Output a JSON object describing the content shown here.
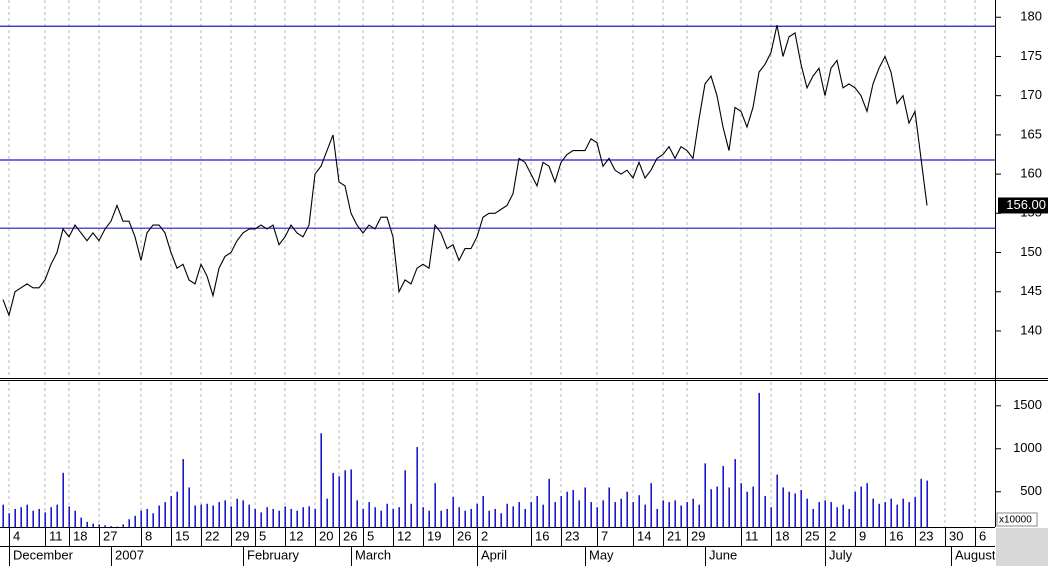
{
  "chart_data": {
    "type": "line",
    "color": "#000000",
    "categories": [
      null,
      "4",
      null,
      null,
      null,
      null,
      null,
      "11",
      null,
      null,
      null,
      "18",
      null,
      null,
      null,
      null,
      "27",
      null,
      null,
      null,
      null,
      null,
      null,
      "8",
      null,
      null,
      null,
      null,
      "15",
      null,
      null,
      null,
      null,
      "22",
      null,
      null,
      null,
      null,
      "29",
      null,
      null,
      null,
      "5",
      null,
      null,
      null,
      null,
      "12",
      null,
      null,
      null,
      null,
      "20",
      null,
      null,
      null,
      "26",
      null,
      null,
      null,
      "5",
      null,
      null,
      null,
      null,
      "12",
      null,
      null,
      null,
      null,
      "19",
      null,
      null,
      null,
      null,
      "26",
      null,
      null,
      null,
      "2",
      null,
      null,
      null,
      null,
      null,
      null,
      null,
      null,
      "16",
      null,
      null,
      null,
      null,
      "23",
      null,
      null,
      null,
      null,
      null,
      "7",
      null,
      null,
      null,
      null,
      null,
      "14",
      null,
      null,
      null,
      null,
      "21",
      null,
      null,
      null,
      "29",
      null,
      null,
      null,
      null,
      null,
      null,
      null,
      null,
      "11",
      null,
      null,
      null,
      null,
      "18",
      null,
      null,
      null,
      null,
      "25",
      null,
      null,
      null,
      "2",
      null,
      null,
      null,
      null,
      "9",
      null,
      null,
      null,
      null,
      "16",
      null,
      null,
      null,
      null,
      "23",
      null,
      null,
      null,
      null,
      "30",
      null,
      null,
      null,
      null,
      "6",
      null,
      null,
      null
    ],
    "month_labels": [
      null,
      "December",
      null,
      null,
      null,
      null,
      null,
      null,
      null,
      null,
      null,
      null,
      null,
      null,
      null,
      null,
      null,
      null,
      "2007",
      null,
      null,
      null,
      null,
      null,
      null,
      null,
      null,
      null,
      null,
      null,
      null,
      null,
      null,
      null,
      null,
      null,
      null,
      null,
      null,
      null,
      "February",
      null,
      null,
      null,
      null,
      null,
      null,
      null,
      null,
      null,
      null,
      null,
      null,
      null,
      null,
      null,
      null,
      null,
      "March",
      null,
      null,
      null,
      null,
      null,
      null,
      null,
      null,
      null,
      null,
      null,
      null,
      null,
      null,
      null,
      null,
      null,
      null,
      null,
      null,
      "April",
      null,
      null,
      null,
      null,
      null,
      null,
      null,
      null,
      null,
      null,
      null,
      null,
      null,
      null,
      null,
      null,
      null,
      "May",
      null,
      null,
      null,
      null,
      null,
      null,
      null,
      null,
      null,
      null,
      null,
      null,
      null,
      null,
      null,
      null,
      null,
      null,
      null,
      "June",
      null,
      null,
      null,
      null,
      null,
      null,
      null,
      null,
      null,
      null,
      null,
      null,
      null,
      null,
      null,
      null,
      null,
      null,
      null,
      "July",
      null,
      null,
      null,
      null,
      null,
      null,
      null,
      null,
      null,
      null,
      null,
      null,
      null,
      null,
      null,
      null,
      null,
      null,
      null,
      null,
      "August",
      null,
      null,
      null,
      null,
      null,
      null,
      null
    ],
    "values": [
      144,
      142,
      145,
      145.5,
      146,
      145.5,
      145.5,
      146.5,
      148.5,
      150,
      153,
      152,
      153.5,
      152.5,
      151.5,
      152.5,
      151.5,
      153,
      154,
      156,
      154,
      154,
      152,
      149,
      152.5,
      153.5,
      153.5,
      152.5,
      150,
      148,
      148.5,
      146.5,
      146,
      148.5,
      147,
      144.5,
      148,
      149.5,
      150,
      151.5,
      152.5,
      153,
      153,
      153.5,
      153,
      153.5,
      151,
      152,
      153.5,
      152.5,
      152,
      153.5,
      160,
      161,
      163,
      165,
      159,
      158.5,
      155,
      153.5,
      152.5,
      153.5,
      153,
      154.5,
      154.5,
      152,
      145,
      146.5,
      146,
      148,
      148.5,
      148,
      153.5,
      152.5,
      150.5,
      151,
      149,
      150.5,
      150.5,
      152,
      154.5,
      155,
      155,
      155.5,
      156,
      157.5,
      162,
      161.5,
      160,
      158.5,
      161.5,
      161,
      159,
      161.5,
      162.5,
      163,
      163,
      163,
      164.5,
      164,
      161,
      162,
      160.5,
      160,
      160.5,
      159.5,
      161.5,
      159.5,
      160.5,
      162,
      162.5,
      163.5,
      162,
      163.5,
      163,
      162,
      167,
      171.5,
      172.5,
      170,
      166,
      163,
      168.5,
      168,
      166,
      168.5,
      173,
      174,
      175.5,
      179,
      175,
      177.5,
      178,
      174,
      171,
      172.5,
      173.5,
      170,
      173.5,
      174.5,
      171,
      171.5,
      171,
      170,
      168,
      171.5,
      173.5,
      175,
      173,
      169,
      170,
      166.5,
      168,
      162,
      156,
      null,
      null,
      null,
      null,
      null,
      null,
      null,
      null,
      null,
      null,
      null
    ],
    "ylim": [
      134,
      182.2
    ],
    "yticks": [
      140,
      145,
      150,
      155,
      160,
      165,
      170,
      175,
      180
    ],
    "levels": [
      178.85,
      161.8,
      153.1
    ],
    "level_color": "#1a1acc",
    "last_price": {
      "value": 156,
      "label": "156.00"
    },
    "grid": true,
    "volume": {
      "type": "bar",
      "color": "#1a1acc",
      "values": [
        350,
        250,
        300,
        320,
        350,
        280,
        300,
        260,
        320,
        350,
        720,
        330,
        280,
        200,
        150,
        130,
        120,
        110,
        100,
        95,
        120,
        180,
        220,
        280,
        300,
        250,
        340,
        380,
        450,
        500,
        880,
        550,
        340,
        350,
        360,
        340,
        380,
        400,
        330,
        420,
        400,
        350,
        300,
        260,
        320,
        300,
        280,
        330,
        300,
        280,
        320,
        330,
        300,
        1180,
        420,
        720,
        680,
        750,
        760,
        400,
        300,
        380,
        320,
        280,
        360,
        300,
        320,
        750,
        360,
        1020,
        320,
        280,
        600,
        280,
        300,
        440,
        320,
        280,
        300,
        360,
        450,
        280,
        300,
        250,
        360,
        330,
        380,
        300,
        380,
        450,
        350,
        650,
        380,
        450,
        500,
        520,
        400,
        550,
        380,
        320,
        400,
        550,
        380,
        420,
        500,
        380,
        460,
        350,
        600,
        300,
        400,
        380,
        400,
        340,
        380,
        420,
        350,
        830,
        530,
        560,
        800,
        550,
        880,
        600,
        500,
        560,
        1650,
        450,
        320,
        700,
        550,
        500,
        480,
        520,
        420,
        300,
        380,
        400,
        380,
        320,
        350,
        300,
        500,
        560,
        600,
        420,
        360,
        380,
        420,
        350,
        420,
        380,
        440,
        650,
        630,
        null,
        null,
        null,
        null,
        null,
        null,
        null,
        null,
        null,
        null,
        null
      ],
      "ylim": [
        90,
        1800
      ],
      "yticks": [
        500,
        1000,
        1500
      ],
      "unit_label": "x10000"
    }
  }
}
